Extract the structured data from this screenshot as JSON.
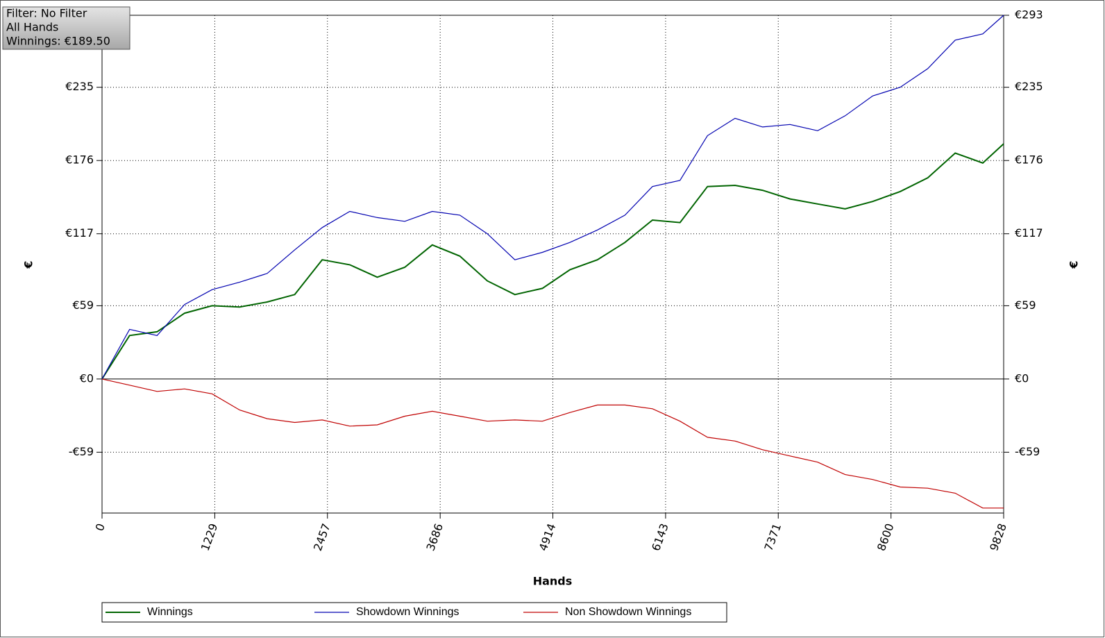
{
  "chart_data": {
    "type": "line",
    "xlabel": "Hands",
    "ylabel": "€",
    "annotations": [
      "Filter: No Filter",
      "All Hands",
      "Winnings: €189.50"
    ],
    "x": [
      0,
      300,
      600,
      900,
      1200,
      1500,
      1800,
      2100,
      2400,
      2700,
      3000,
      3300,
      3600,
      3900,
      4200,
      4500,
      4800,
      5100,
      5400,
      5700,
      6000,
      6300,
      6600,
      6900,
      7200,
      7500,
      7800,
      8100,
      8400,
      8700,
      9000,
      9300,
      9600,
      9828
    ],
    "series": [
      {
        "name": "Winnings",
        "color": "#006400",
        "values": [
          0,
          35,
          38,
          53,
          59,
          58,
          62,
          68,
          96,
          92,
          82,
          90,
          108,
          99,
          79,
          68,
          73,
          88,
          96,
          110,
          128,
          126,
          155,
          156,
          152,
          145,
          141,
          137,
          143,
          151,
          162,
          182,
          174,
          189.5
        ]
      },
      {
        "name": "Showdown Winnings",
        "color": "#0000b0",
        "values": [
          0,
          40,
          35,
          60,
          72,
          78,
          85,
          104,
          122,
          135,
          130,
          127,
          135,
          132,
          117,
          96,
          102,
          110,
          120,
          132,
          155,
          160,
          196,
          210,
          203,
          205,
          200,
          212,
          228,
          235,
          250,
          273,
          278,
          293
        ]
      },
      {
        "name": "Non Showdown Winnings",
        "color": "#c00000",
        "values": [
          0,
          -5,
          -10,
          -8,
          -12,
          -25,
          -32,
          -35,
          -33,
          -38,
          -37,
          -30,
          -26,
          -30,
          -34,
          -33,
          -34,
          -27,
          -21,
          -21,
          -24,
          -34,
          -47,
          -50,
          -57,
          -62,
          -67,
          -77,
          -81,
          -87,
          -88,
          -92,
          -104,
          -104
        ]
      }
    ],
    "xlim": [
      0,
      9828
    ],
    "xticks": [
      0,
      1229,
      2457,
      3686,
      4914,
      6143,
      7371,
      8600,
      9828
    ],
    "ylim": [
      -108,
      293
    ],
    "yticks": [
      {
        "value": -59,
        "label": "-€59"
      },
      {
        "value": 0,
        "label": "€0"
      },
      {
        "value": 59,
        "label": "€59"
      },
      {
        "value": 117,
        "label": "€117"
      },
      {
        "value": 176,
        "label": "€176"
      },
      {
        "value": 235,
        "label": "€235"
      },
      {
        "value": 293,
        "label": "€293"
      }
    ],
    "grid": true
  }
}
